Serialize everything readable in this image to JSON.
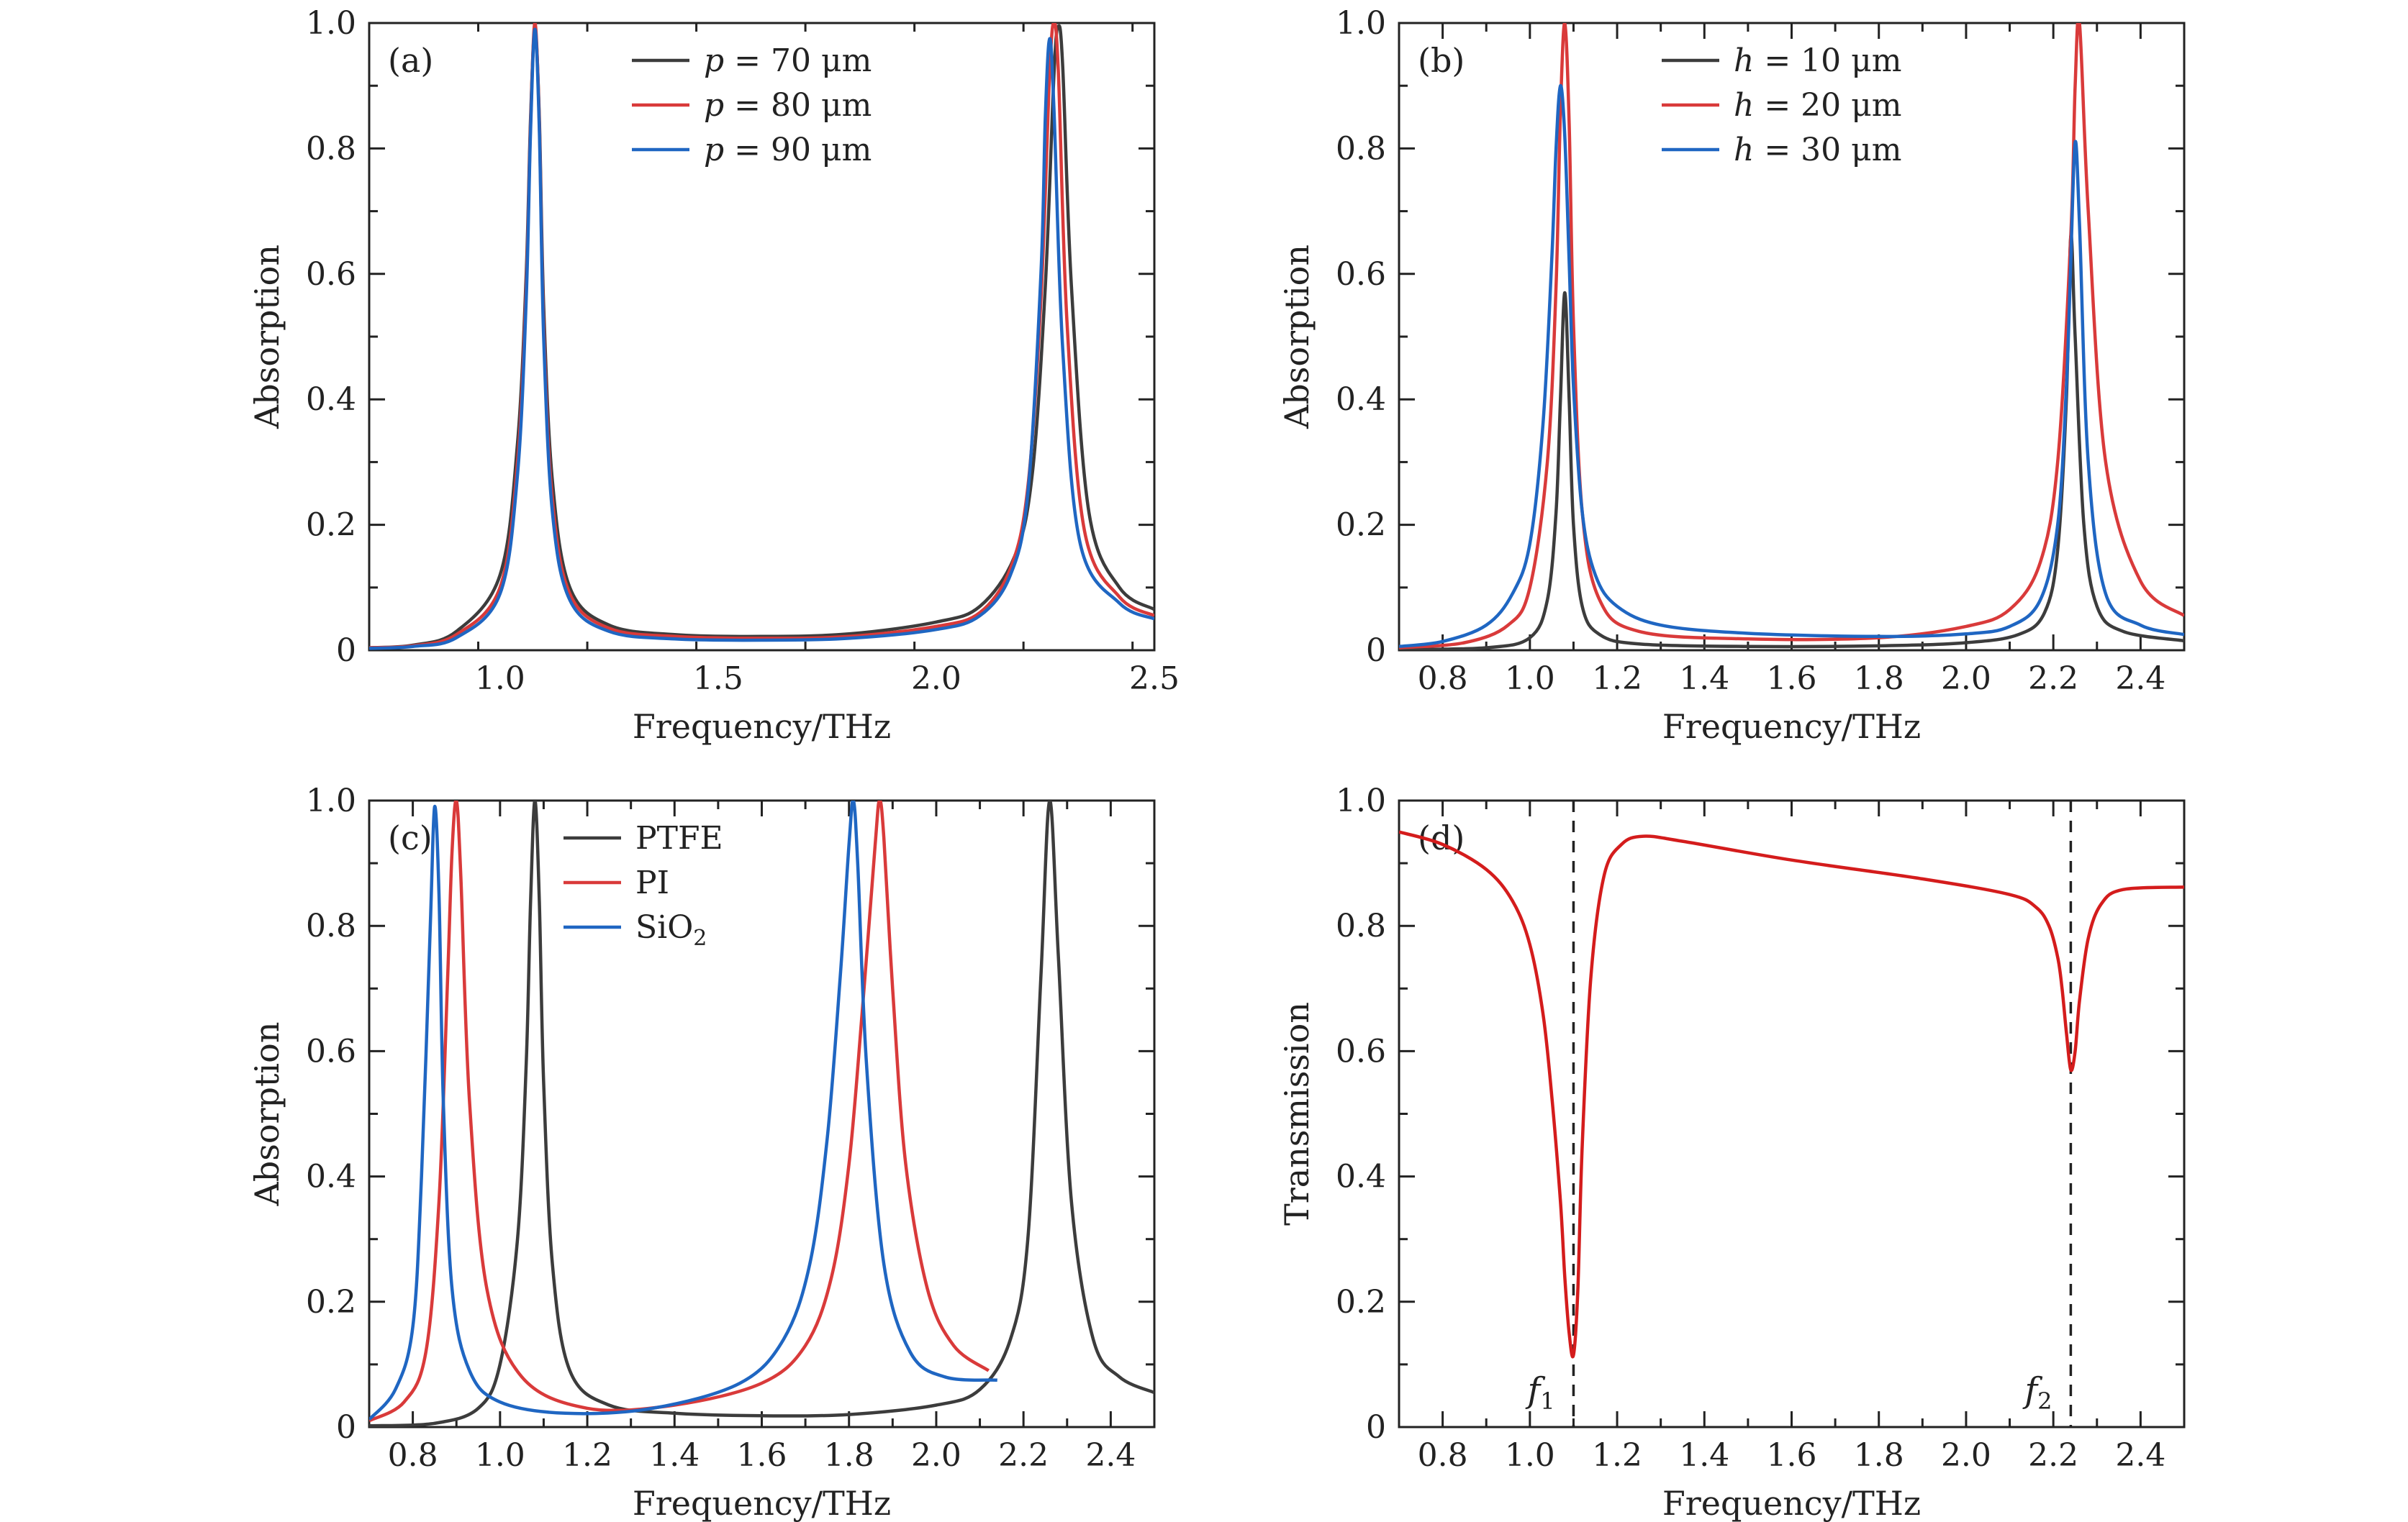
{
  "chart_data": [
    {
      "type": "line",
      "panel_label": "(a)",
      "xlabel": "Frequency/THz",
      "ylabel": "Absorption",
      "xlim": [
        0.7,
        2.5
      ],
      "ylim": [
        0,
        1.0
      ],
      "xticks": [
        1.0,
        1.5,
        2.0,
        2.5
      ],
      "xtick_labels": [
        "1.0",
        "1.5",
        "2.0",
        "2.5"
      ],
      "yticks": [
        0,
        0.2,
        0.4,
        0.6,
        0.8,
        1.0
      ],
      "ytick_labels": [
        "0",
        "0.2",
        "0.4",
        "0.6",
        "0.8",
        "1.0"
      ],
      "legend_position": "top-center",
      "series": [
        {
          "name": "p = 70 μm",
          "legend_var": "p",
          "legend_rest": " = 70 μm",
          "color": "#3c3c3c",
          "x": [
            0.7,
            0.8,
            0.9,
            1.0,
            1.04,
            1.06,
            1.07,
            1.08,
            1.09,
            1.1,
            1.12,
            1.16,
            1.25,
            1.4,
            1.6,
            1.8,
            2.0,
            2.1,
            2.18,
            2.22,
            2.25,
            2.27,
            2.28,
            2.29,
            2.31,
            2.35,
            2.42,
            2.5
          ],
          "y": [
            0.004,
            0.008,
            0.03,
            0.12,
            0.33,
            0.6,
            0.85,
            0.99,
            0.85,
            0.55,
            0.27,
            0.1,
            0.04,
            0.025,
            0.022,
            0.026,
            0.045,
            0.07,
            0.15,
            0.28,
            0.58,
            0.92,
            0.995,
            0.93,
            0.58,
            0.22,
            0.1,
            0.065
          ]
        },
        {
          "name": "p = 80 μm",
          "legend_var": "p",
          "legend_rest": " = 80 μm",
          "color": "#d93a3a",
          "x": [
            0.7,
            0.8,
            0.9,
            1.0,
            1.04,
            1.06,
            1.07,
            1.08,
            1.09,
            1.1,
            1.12,
            1.16,
            1.25,
            1.4,
            1.6,
            1.8,
            2.0,
            2.1,
            2.17,
            2.21,
            2.24,
            2.26,
            2.27,
            2.28,
            2.3,
            2.34,
            2.42,
            2.5
          ],
          "y": [
            0.004,
            0.007,
            0.025,
            0.1,
            0.3,
            0.58,
            0.84,
            1.0,
            0.84,
            0.52,
            0.24,
            0.09,
            0.035,
            0.022,
            0.019,
            0.022,
            0.038,
            0.06,
            0.13,
            0.26,
            0.56,
            0.92,
            1.0,
            0.92,
            0.52,
            0.19,
            0.085,
            0.055
          ]
        },
        {
          "name": "p = 90 μm",
          "legend_var": "p",
          "legend_rest": " = 90 μm",
          "color": "#1f66c2",
          "x": [
            0.7,
            0.8,
            0.9,
            1.0,
            1.04,
            1.06,
            1.07,
            1.08,
            1.09,
            1.1,
            1.12,
            1.16,
            1.25,
            1.4,
            1.6,
            1.8,
            2.0,
            2.1,
            2.17,
            2.21,
            2.24,
            2.25,
            2.26,
            2.27,
            2.29,
            2.33,
            2.42,
            2.5
          ],
          "y": [
            0.003,
            0.006,
            0.02,
            0.09,
            0.28,
            0.56,
            0.83,
            0.99,
            0.83,
            0.5,
            0.22,
            0.08,
            0.03,
            0.018,
            0.016,
            0.019,
            0.033,
            0.055,
            0.12,
            0.25,
            0.6,
            0.85,
            0.975,
            0.86,
            0.48,
            0.17,
            0.075,
            0.05
          ]
        }
      ]
    },
    {
      "type": "line",
      "panel_label": "(b)",
      "xlabel": "Frequency/THz",
      "ylabel": "Absorption",
      "xlim": [
        0.7,
        2.5
      ],
      "ylim": [
        0,
        1.0
      ],
      "xticks": [
        0.8,
        1.0,
        1.2,
        1.4,
        1.6,
        1.8,
        2.0,
        2.2,
        2.4
      ],
      "xtick_labels": [
        "0.8",
        "1.0",
        "1.2",
        "1.4",
        "1.6",
        "1.8",
        "2.0",
        "2.2",
        "2.4"
      ],
      "yticks": [
        0,
        0.2,
        0.4,
        0.6,
        0.8,
        1.0
      ],
      "ytick_labels": [
        "0",
        "0.2",
        "0.4",
        "0.6",
        "0.8",
        "1.0"
      ],
      "legend_position": "top-center",
      "series": [
        {
          "name": "h = 10 μm",
          "legend_var": "h",
          "legend_rest": " = 10 μm",
          "color": "#3c3c3c",
          "x": [
            0.7,
            0.9,
            1.0,
            1.04,
            1.06,
            1.07,
            1.08,
            1.09,
            1.1,
            1.12,
            1.16,
            1.25,
            1.5,
            1.8,
            2.0,
            2.12,
            2.18,
            2.21,
            2.23,
            2.24,
            2.25,
            2.27,
            2.3,
            2.36,
            2.5
          ],
          "y": [
            0.001,
            0.004,
            0.02,
            0.08,
            0.22,
            0.4,
            0.57,
            0.4,
            0.2,
            0.07,
            0.025,
            0.01,
            0.006,
            0.007,
            0.012,
            0.025,
            0.06,
            0.16,
            0.4,
            0.66,
            0.5,
            0.2,
            0.07,
            0.03,
            0.015
          ]
        },
        {
          "name": "h = 20 μm",
          "legend_var": "h",
          "legend_rest": " = 20 μm",
          "color": "#d93a3a",
          "x": [
            0.7,
            0.85,
            0.95,
            1.0,
            1.04,
            1.06,
            1.07,
            1.08,
            1.09,
            1.1,
            1.12,
            1.16,
            1.25,
            1.5,
            1.8,
            2.0,
            2.1,
            2.17,
            2.21,
            2.24,
            2.25,
            2.26,
            2.28,
            2.32,
            2.4,
            2.5
          ],
          "y": [
            0.004,
            0.012,
            0.04,
            0.1,
            0.3,
            0.58,
            0.86,
            1.0,
            0.84,
            0.52,
            0.22,
            0.08,
            0.03,
            0.018,
            0.02,
            0.038,
            0.065,
            0.14,
            0.3,
            0.66,
            0.9,
            1.0,
            0.7,
            0.3,
            0.11,
            0.055
          ]
        },
        {
          "name": "h = 30 μm",
          "legend_var": "h",
          "legend_rest": " = 30 μm",
          "color": "#1f66c2",
          "x": [
            0.7,
            0.8,
            0.9,
            0.96,
            1.0,
            1.03,
            1.05,
            1.06,
            1.07,
            1.08,
            1.09,
            1.1,
            1.12,
            1.15,
            1.2,
            1.3,
            1.5,
            1.8,
            2.0,
            2.1,
            2.17,
            2.21,
            2.23,
            2.24,
            2.25,
            2.26,
            2.28,
            2.32,
            2.4,
            2.5
          ],
          "y": [
            0.006,
            0.014,
            0.04,
            0.09,
            0.17,
            0.36,
            0.62,
            0.8,
            0.9,
            0.82,
            0.62,
            0.42,
            0.22,
            0.12,
            0.07,
            0.04,
            0.027,
            0.022,
            0.026,
            0.038,
            0.08,
            0.2,
            0.42,
            0.62,
            0.81,
            0.68,
            0.3,
            0.09,
            0.04,
            0.025
          ]
        }
      ]
    },
    {
      "type": "line",
      "panel_label": "(c)",
      "xlabel": "Frequency/THz",
      "ylabel": "Absorption",
      "xlim": [
        0.7,
        2.5
      ],
      "ylim": [
        0,
        1.0
      ],
      "xticks": [
        0.8,
        1.0,
        1.2,
        1.4,
        1.6,
        1.8,
        2.0,
        2.2,
        2.4
      ],
      "xtick_labels": [
        "0.8",
        "1.0",
        "1.2",
        "1.4",
        "1.6",
        "1.8",
        "2.0",
        "2.2",
        "2.4"
      ],
      "yticks": [
        0,
        0.2,
        0.4,
        0.6,
        0.8,
        1.0
      ],
      "ytick_labels": [
        "0",
        "0.2",
        "0.4",
        "0.6",
        "0.8",
        "1.0"
      ],
      "legend_position": "top-center",
      "series": [
        {
          "name": "PTFE",
          "legend_text": "PTFE",
          "color": "#3c3c3c",
          "x": [
            0.7,
            0.85,
            0.95,
            1.0,
            1.04,
            1.06,
            1.07,
            1.08,
            1.09,
            1.1,
            1.12,
            1.16,
            1.25,
            1.4,
            1.6,
            1.8,
            2.0,
            2.1,
            2.17,
            2.21,
            2.24,
            2.26,
            2.28,
            2.31,
            2.36,
            2.42,
            2.5
          ],
          "y": [
            0.002,
            0.006,
            0.03,
            0.1,
            0.3,
            0.58,
            0.84,
            1.0,
            0.84,
            0.55,
            0.26,
            0.09,
            0.035,
            0.022,
            0.018,
            0.02,
            0.035,
            0.06,
            0.14,
            0.3,
            0.72,
            1.0,
            0.75,
            0.36,
            0.14,
            0.08,
            0.055
          ]
        },
        {
          "name": "PI",
          "legend_text": "PI",
          "color": "#d93a3a",
          "x": [
            0.7,
            0.78,
            0.83,
            0.86,
            0.88,
            0.89,
            0.9,
            0.91,
            0.93,
            0.97,
            1.05,
            1.2,
            1.4,
            1.6,
            1.7,
            1.76,
            1.8,
            1.83,
            1.86,
            1.87,
            1.88,
            1.9,
            1.93,
            1.98,
            2.04,
            2.12
          ],
          "y": [
            0.01,
            0.04,
            0.12,
            0.36,
            0.72,
            0.92,
            1.0,
            0.88,
            0.52,
            0.22,
            0.08,
            0.03,
            0.035,
            0.07,
            0.13,
            0.24,
            0.42,
            0.66,
            0.93,
            1.0,
            0.94,
            0.7,
            0.42,
            0.22,
            0.13,
            0.09
          ]
        },
        {
          "name": "SiO₂",
          "legend_text": "SiO",
          "legend_sub": "2",
          "color": "#1f66c2",
          "x": [
            0.7,
            0.76,
            0.8,
            0.82,
            0.84,
            0.85,
            0.86,
            0.87,
            0.89,
            0.93,
            1.0,
            1.15,
            1.35,
            1.55,
            1.65,
            1.71,
            1.75,
            1.78,
            1.8,
            1.81,
            1.82,
            1.84,
            1.88,
            1.94,
            2.02,
            2.14
          ],
          "y": [
            0.012,
            0.06,
            0.16,
            0.4,
            0.8,
            0.99,
            0.85,
            0.52,
            0.22,
            0.09,
            0.04,
            0.022,
            0.03,
            0.07,
            0.14,
            0.26,
            0.46,
            0.72,
            0.93,
            1.0,
            0.9,
            0.58,
            0.26,
            0.12,
            0.08,
            0.075
          ]
        }
      ]
    },
    {
      "type": "line",
      "panel_label": "(d)",
      "xlabel": "Frequency/THz",
      "ylabel": "Transmission",
      "xlim": [
        0.7,
        2.5
      ],
      "ylim": [
        0,
        1.0
      ],
      "xticks": [
        0.8,
        1.0,
        1.2,
        1.4,
        1.6,
        1.8,
        2.0,
        2.2,
        2.4
      ],
      "xtick_labels": [
        "0.8",
        "1.0",
        "1.2",
        "1.4",
        "1.6",
        "1.8",
        "2.0",
        "2.2",
        "2.4"
      ],
      "yticks": [
        0,
        0.2,
        0.4,
        0.6,
        0.8,
        1.0
      ],
      "ytick_labels": [
        "0",
        "0.2",
        "0.4",
        "0.6",
        "0.8",
        "1.0"
      ],
      "series": [
        {
          "color": "#d41c1c",
          "x": [
            0.7,
            0.8,
            0.9,
            0.96,
            1.0,
            1.03,
            1.05,
            1.07,
            1.08,
            1.09,
            1.1,
            1.11,
            1.12,
            1.14,
            1.17,
            1.21,
            1.26,
            1.35,
            1.6,
            1.9,
            2.1,
            2.16,
            2.19,
            2.21,
            2.22,
            2.23,
            2.24,
            2.25,
            2.26,
            2.28,
            2.31,
            2.36,
            2.5
          ],
          "y": [
            0.95,
            0.93,
            0.89,
            0.84,
            0.77,
            0.66,
            0.53,
            0.36,
            0.24,
            0.15,
            0.115,
            0.22,
            0.45,
            0.72,
            0.88,
            0.93,
            0.943,
            0.935,
            0.905,
            0.875,
            0.85,
            0.83,
            0.8,
            0.75,
            0.7,
            0.63,
            0.57,
            0.6,
            0.68,
            0.78,
            0.835,
            0.858,
            0.862
          ]
        }
      ],
      "markers": [
        {
          "x": 1.1,
          "var": "f",
          "sub": "1"
        },
        {
          "x": 2.24,
          "var": "f",
          "sub": "2"
        }
      ]
    }
  ]
}
